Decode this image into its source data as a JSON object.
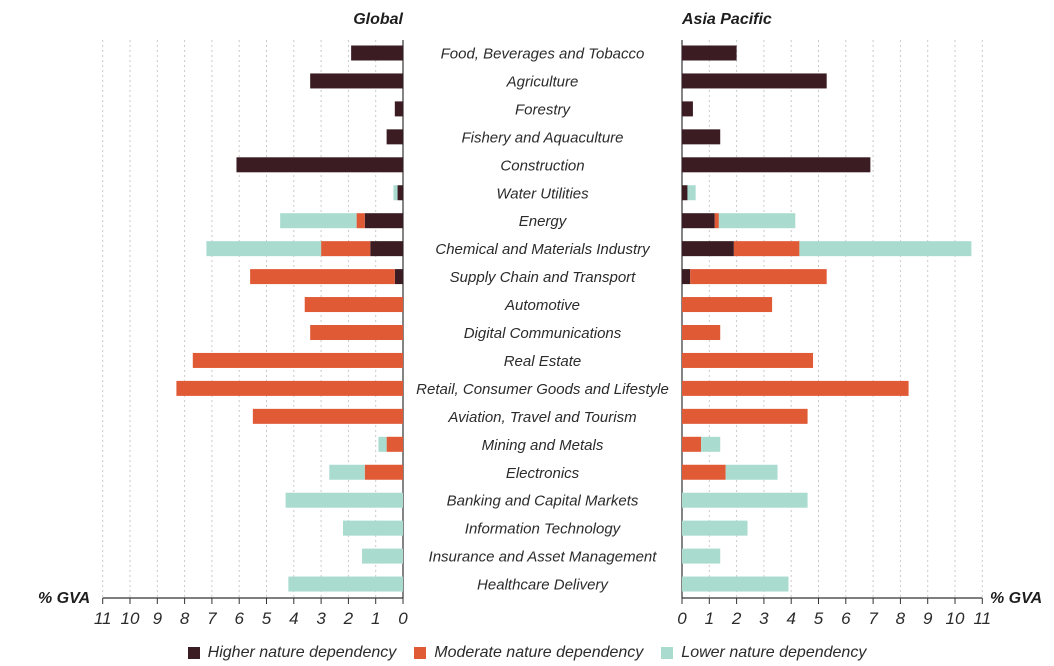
{
  "chart_data": {
    "type": "bar",
    "orientation": "horizontal",
    "stacked": true,
    "panels": [
      {
        "title": "Global",
        "direction": "left",
        "xlim": [
          0,
          11
        ],
        "ticks": [
          0,
          1,
          2,
          3,
          4,
          5,
          6,
          7,
          8,
          9,
          10,
          11
        ],
        "xlabel": "% GVA"
      },
      {
        "title": "Asia Pacific",
        "direction": "right",
        "xlim": [
          0,
          11
        ],
        "ticks": [
          0,
          1,
          2,
          3,
          4,
          5,
          6,
          7,
          8,
          9,
          10,
          11
        ],
        "xlabel": "% GVA"
      }
    ],
    "categories": [
      "Food, Beverages and Tobacco",
      "Agriculture",
      "Forestry",
      "Fishery and Aquaculture",
      "Construction",
      "Water Utilities",
      "Energy",
      "Chemical and Materials Industry",
      "Supply Chain and Transport",
      "Automotive",
      "Digital Communications",
      "Real Estate",
      "Retail, Consumer Goods and Lifestyle",
      "Aviation, Travel and Tourism",
      "Mining and Metals",
      "Electronics",
      "Banking and Capital Markets",
      "Information Technology",
      "Insurance and Asset Management",
      "Healthcare Delivery"
    ],
    "series": [
      {
        "name": "Higher nature dependency",
        "color": "#3a1c22",
        "global": [
          1.9,
          3.4,
          0.3,
          0.6,
          6.1,
          0.2,
          1.4,
          1.2,
          0.3,
          0,
          0,
          0,
          0,
          0,
          0,
          0,
          0,
          0,
          0,
          0
        ],
        "asia_pacific": [
          2.0,
          5.3,
          0.4,
          1.4,
          6.9,
          0.2,
          1.2,
          1.9,
          0.3,
          0,
          0,
          0,
          0,
          0,
          0,
          0,
          0,
          0,
          0,
          0
        ]
      },
      {
        "name": "Moderate nature dependency",
        "color": "#e05a36",
        "global": [
          0,
          0,
          0,
          0,
          0,
          0,
          0.3,
          1.8,
          5.3,
          3.6,
          3.4,
          7.7,
          8.3,
          5.5,
          0.6,
          1.4,
          0,
          0,
          0,
          0
        ],
        "asia_pacific": [
          0,
          0,
          0,
          0,
          0,
          0,
          0.15,
          2.4,
          5.0,
          3.3,
          1.4,
          4.8,
          8.3,
          4.6,
          0.7,
          1.6,
          0,
          0,
          0,
          0
        ]
      },
      {
        "name": "Lower nature dependency",
        "color": "#a9dccf",
        "global": [
          0,
          0,
          0,
          0,
          0,
          0.15,
          2.8,
          4.2,
          0,
          0,
          0,
          0,
          0,
          0,
          0.3,
          1.3,
          4.3,
          2.2,
          1.5,
          4.2
        ],
        "asia_pacific": [
          0,
          0,
          0,
          0,
          0,
          0.3,
          2.8,
          6.3,
          0,
          0,
          0,
          0,
          0,
          0,
          0.7,
          1.9,
          4.6,
          2.4,
          1.4,
          3.9
        ]
      }
    ]
  }
}
